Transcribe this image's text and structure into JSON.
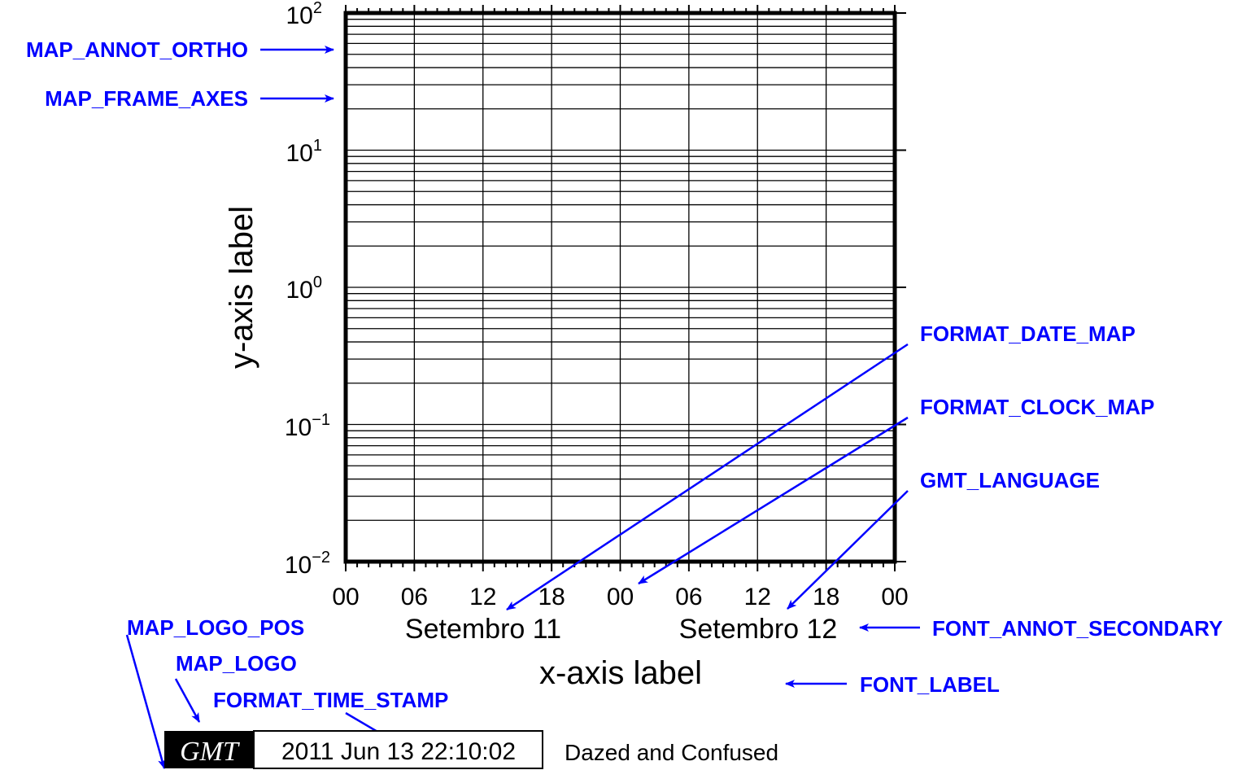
{
  "axes": {
    "xlabel": "x-axis label",
    "ylabel": "y-axis label",
    "x_ticks": [
      "00",
      "06",
      "12",
      "18",
      "00",
      "06",
      "12",
      "18",
      "00"
    ],
    "date_labels": [
      "Setembro 11",
      "Setembro 12"
    ],
    "y_ticks": [
      {
        "base": "10",
        "exp": "2"
      },
      {
        "base": "10",
        "exp": "1"
      },
      {
        "base": "10",
        "exp": "0"
      },
      {
        "base": "10",
        "exp": "−1"
      },
      {
        "base": "10",
        "exp": "−2"
      }
    ],
    "y_scale": "log",
    "grid": true
  },
  "annotations": {
    "map_annot_ortho": "MAP_ANNOT_ORTHO",
    "map_frame_axes": "MAP_FRAME_AXES",
    "format_date_map": "FORMAT_DATE_MAP",
    "format_clock_map": "FORMAT_CLOCK_MAP",
    "gmt_language": "GMT_LANGUAGE",
    "font_annot_secondary": "FONT_ANNOT_SECONDARY",
    "font_label": "FONT_LABEL",
    "map_logo_pos": "MAP_LOGO_POS",
    "map_logo": "MAP_LOGO",
    "format_time_stamp": "FORMAT_TIME_STAMP"
  },
  "timestamp": {
    "logo": "GMT",
    "time": "2011 Jun 13 22:10:02",
    "command": "Dazed and Confused"
  },
  "colors": {
    "annotation": "#0000ff",
    "frame": "#000000"
  }
}
